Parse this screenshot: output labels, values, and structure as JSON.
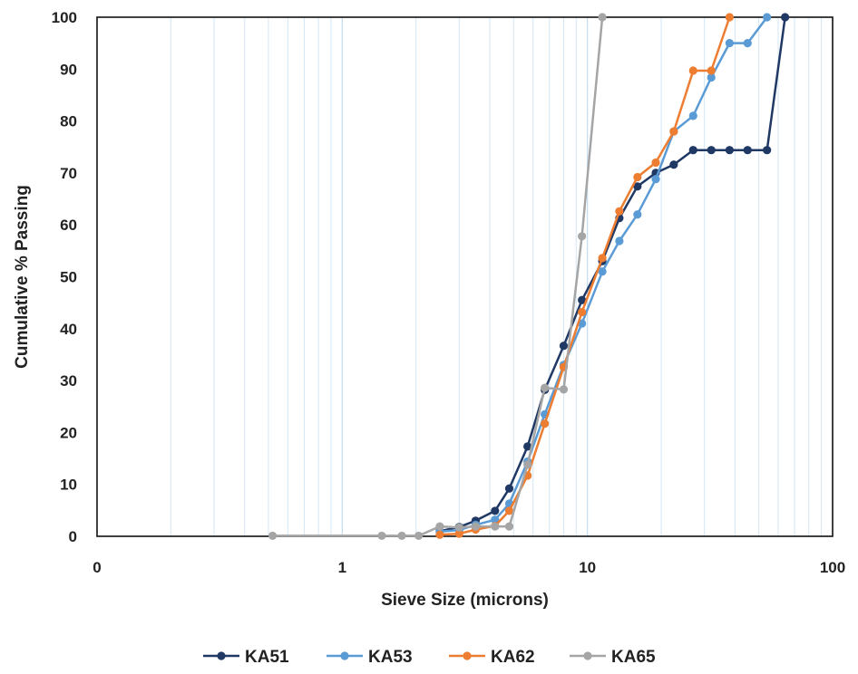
{
  "chart_data": {
    "type": "line",
    "xlabel": "Sieve Size (microns)",
    "ylabel": "Cumulative % Passing",
    "x_scale": "log",
    "xlim": [
      0.1,
      100
    ],
    "ylim": [
      0,
      100
    ],
    "x_tick_labels": [
      "0",
      "1",
      "10",
      "100"
    ],
    "y_tick_labels": [
      "0",
      "10",
      "20",
      "30",
      "40",
      "50",
      "60",
      "70",
      "80",
      "90",
      "100"
    ],
    "grid": "vertical minor gridlines (log scale)",
    "legend_position": "bottom",
    "series": [
      {
        "name": "KA51",
        "color": "#203864",
        "x": [
          2.5,
          3.0,
          3.5,
          4.2,
          4.8,
          5.7,
          6.7,
          8.0,
          9.5,
          11.5,
          13.5,
          16.0,
          19.0,
          22.5,
          27.0,
          32.0,
          38.0,
          45.0,
          54.0,
          64.0
        ],
        "y": [
          1.0,
          1.8,
          3.0,
          4.9,
          9.2,
          17.3,
          28.2,
          36.7,
          45.5,
          53.0,
          61.3,
          67.4,
          70.0,
          71.6,
          74.4,
          74.4,
          74.4,
          74.4,
          74.4,
          100.0
        ]
      },
      {
        "name": "KA53",
        "color": "#5B9BD5",
        "x": [
          2.5,
          3.0,
          3.5,
          4.2,
          4.8,
          5.7,
          6.7,
          8.0,
          9.5,
          11.5,
          13.5,
          16.0,
          19.0,
          22.5,
          27.0,
          32.0,
          38.0,
          45.0,
          54.0
        ],
        "y": [
          0.9,
          1.2,
          2.2,
          3.2,
          6.3,
          14.4,
          23.5,
          33.0,
          41.0,
          51.0,
          56.9,
          62.0,
          68.8,
          78.0,
          81.0,
          88.4,
          95.0,
          95.0,
          100.0
        ]
      },
      {
        "name": "KA62",
        "color": "#ED7D31",
        "x": [
          2.5,
          3.0,
          3.5,
          4.2,
          4.8,
          5.7,
          6.7,
          8.0,
          9.5,
          11.5,
          13.5,
          16.0,
          19.0,
          22.5,
          27.0,
          32.0,
          38.0
        ],
        "y": [
          0.3,
          0.5,
          1.3,
          2.0,
          4.9,
          11.7,
          21.7,
          32.6,
          43.2,
          53.6,
          62.6,
          69.2,
          72.0,
          78.0,
          89.7,
          89.7,
          100.0
        ]
      },
      {
        "name": "KA65",
        "color": "#A5A5A5",
        "x": [
          0.52,
          1.45,
          1.75,
          2.05,
          2.5,
          3.0,
          3.5,
          4.2,
          4.8,
          5.7,
          6.7,
          8.0,
          9.5,
          11.5
        ],
        "y": [
          0.1,
          0.1,
          0.1,
          0.1,
          1.9,
          1.7,
          1.9,
          1.9,
          1.9,
          13.8,
          28.6,
          28.3,
          57.8,
          100.0
        ]
      }
    ]
  }
}
